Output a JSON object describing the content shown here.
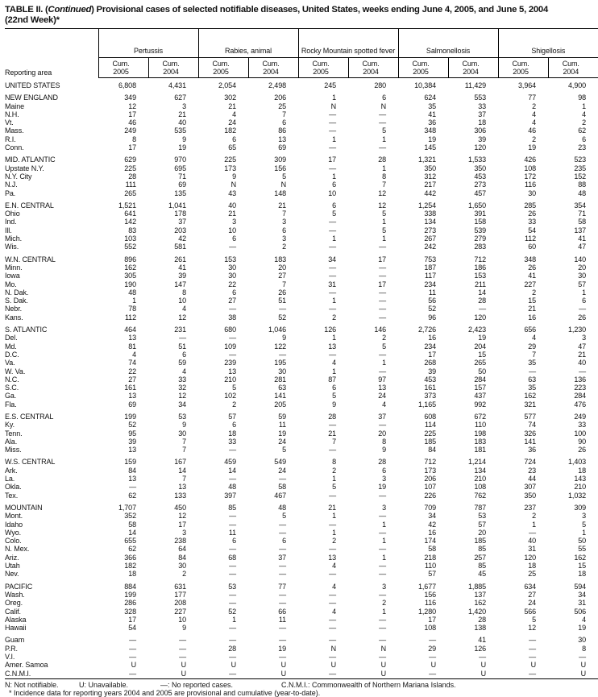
{
  "title": {
    "prefix": "TABLE II. (",
    "italic": "Continued",
    "text": ") Provisional cases of selected notifiable diseases, United States, weeks ending June 4, 2005, and June 5, 2004",
    "line2": "(22nd Week)*"
  },
  "header": {
    "area_label": "Reporting area",
    "groups": [
      "Pertussis",
      "Rabies, animal",
      "Rocky Mountain spotted fever",
      "Salmonellosis",
      "Shigellosis"
    ],
    "subcolumns": [
      [
        "Cum.",
        "2005"
      ],
      [
        "Cum.",
        "2004"
      ]
    ]
  },
  "rows": [
    {
      "area": "UNITED STATES",
      "v": [
        "6,808",
        "4,431",
        "2,054",
        "2,498",
        "245",
        "280",
        "10,384",
        "11,429",
        "3,964",
        "4,900"
      ],
      "type": "us"
    },
    {
      "area": "NEW ENGLAND",
      "v": [
        "349",
        "627",
        "302",
        "206",
        "1",
        "6",
        "624",
        "553",
        "77",
        "98"
      ],
      "type": "gs"
    },
    {
      "area": "Maine",
      "v": [
        "12",
        "3",
        "21",
        "25",
        "N",
        "N",
        "35",
        "33",
        "2",
        "1"
      ]
    },
    {
      "area": "N.H.",
      "v": [
        "17",
        "21",
        "4",
        "7",
        "—",
        "—",
        "41",
        "37",
        "4",
        "4"
      ]
    },
    {
      "area": "Vt.",
      "v": [
        "46",
        "40",
        "24",
        "6",
        "—",
        "—",
        "36",
        "18",
        "4",
        "2"
      ]
    },
    {
      "area": "Mass.",
      "v": [
        "249",
        "535",
        "182",
        "86",
        "—",
        "5",
        "348",
        "306",
        "46",
        "62"
      ]
    },
    {
      "area": "R.I.",
      "v": [
        "8",
        "9",
        "6",
        "13",
        "1",
        "1",
        "19",
        "39",
        "2",
        "6"
      ]
    },
    {
      "area": "Conn.",
      "v": [
        "17",
        "19",
        "65",
        "69",
        "—",
        "—",
        "145",
        "120",
        "19",
        "23"
      ]
    },
    {
      "area": "MID. ATLANTIC",
      "v": [
        "629",
        "970",
        "225",
        "309",
        "17",
        "28",
        "1,321",
        "1,533",
        "426",
        "523"
      ],
      "type": "gs"
    },
    {
      "area": "Upstate N.Y.",
      "v": [
        "225",
        "695",
        "173",
        "156",
        "—",
        "1",
        "350",
        "350",
        "108",
        "235"
      ]
    },
    {
      "area": "N.Y. City",
      "v": [
        "28",
        "71",
        "9",
        "5",
        "1",
        "8",
        "312",
        "453",
        "172",
        "152"
      ]
    },
    {
      "area": "N.J.",
      "v": [
        "111",
        "69",
        "N",
        "N",
        "6",
        "7",
        "217",
        "273",
        "116",
        "88"
      ]
    },
    {
      "area": "Pa.",
      "v": [
        "265",
        "135",
        "43",
        "148",
        "10",
        "12",
        "442",
        "457",
        "30",
        "48"
      ]
    },
    {
      "area": "E.N. CENTRAL",
      "v": [
        "1,521",
        "1,041",
        "40",
        "21",
        "6",
        "12",
        "1,254",
        "1,650",
        "285",
        "354"
      ],
      "type": "gs"
    },
    {
      "area": "Ohio",
      "v": [
        "641",
        "178",
        "21",
        "7",
        "5",
        "5",
        "338",
        "391",
        "26",
        "71"
      ]
    },
    {
      "area": "Ind.",
      "v": [
        "142",
        "37",
        "3",
        "3",
        "—",
        "1",
        "134",
        "158",
        "33",
        "58"
      ]
    },
    {
      "area": "Ill.",
      "v": [
        "83",
        "203",
        "10",
        "6",
        "—",
        "5",
        "273",
        "539",
        "54",
        "137"
      ]
    },
    {
      "area": "Mich.",
      "v": [
        "103",
        "42",
        "6",
        "3",
        "1",
        "1",
        "267",
        "279",
        "112",
        "41"
      ]
    },
    {
      "area": "Wis.",
      "v": [
        "552",
        "581",
        "—",
        "2",
        "—",
        "—",
        "242",
        "283",
        "60",
        "47"
      ]
    },
    {
      "area": "W.N. CENTRAL",
      "v": [
        "896",
        "261",
        "153",
        "183",
        "34",
        "17",
        "753",
        "712",
        "348",
        "140"
      ],
      "type": "gs"
    },
    {
      "area": "Minn.",
      "v": [
        "162",
        "41",
        "30",
        "20",
        "—",
        "—",
        "187",
        "186",
        "26",
        "20"
      ]
    },
    {
      "area": "Iowa",
      "v": [
        "305",
        "39",
        "30",
        "27",
        "—",
        "—",
        "117",
        "153",
        "41",
        "30"
      ]
    },
    {
      "area": "Mo.",
      "v": [
        "190",
        "147",
        "22",
        "7",
        "31",
        "17",
        "234",
        "211",
        "227",
        "57"
      ]
    },
    {
      "area": "N. Dak.",
      "v": [
        "48",
        "8",
        "6",
        "26",
        "—",
        "—",
        "11",
        "14",
        "2",
        "1"
      ]
    },
    {
      "area": "S. Dak.",
      "v": [
        "1",
        "10",
        "27",
        "51",
        "1",
        "—",
        "56",
        "28",
        "15",
        "6"
      ]
    },
    {
      "area": "Nebr.",
      "v": [
        "78",
        "4",
        "—",
        "—",
        "—",
        "—",
        "52",
        "—",
        "21",
        "—"
      ]
    },
    {
      "area": "Kans.",
      "v": [
        "112",
        "12",
        "38",
        "52",
        "2",
        "—",
        "96",
        "120",
        "16",
        "26"
      ]
    },
    {
      "area": "S. ATLANTIC",
      "v": [
        "464",
        "231",
        "680",
        "1,046",
        "126",
        "146",
        "2,726",
        "2,423",
        "656",
        "1,230"
      ],
      "type": "gs"
    },
    {
      "area": "Del.",
      "v": [
        "13",
        "—",
        "—",
        "9",
        "1",
        "2",
        "16",
        "19",
        "4",
        "3"
      ]
    },
    {
      "area": "Md.",
      "v": [
        "81",
        "51",
        "109",
        "122",
        "13",
        "5",
        "234",
        "204",
        "29",
        "47"
      ]
    },
    {
      "area": "D.C.",
      "v": [
        "4",
        "6",
        "—",
        "—",
        "—",
        "—",
        "17",
        "15",
        "7",
        "21"
      ]
    },
    {
      "area": "Va.",
      "v": [
        "74",
        "59",
        "239",
        "195",
        "4",
        "1",
        "268",
        "265",
        "35",
        "40"
      ]
    },
    {
      "area": "W. Va.",
      "v": [
        "22",
        "4",
        "13",
        "30",
        "1",
        "—",
        "39",
        "50",
        "—",
        "—"
      ]
    },
    {
      "area": "N.C.",
      "v": [
        "27",
        "33",
        "210",
        "281",
        "87",
        "97",
        "453",
        "284",
        "63",
        "136"
      ]
    },
    {
      "area": "S.C.",
      "v": [
        "161",
        "32",
        "5",
        "63",
        "6",
        "13",
        "161",
        "157",
        "35",
        "223"
      ]
    },
    {
      "area": "Ga.",
      "v": [
        "13",
        "12",
        "102",
        "141",
        "5",
        "24",
        "373",
        "437",
        "162",
        "284"
      ]
    },
    {
      "area": "Fla.",
      "v": [
        "69",
        "34",
        "2",
        "205",
        "9",
        "4",
        "1,165",
        "992",
        "321",
        "476"
      ]
    },
    {
      "area": "E.S. CENTRAL",
      "v": [
        "199",
        "53",
        "57",
        "59",
        "28",
        "37",
        "608",
        "672",
        "577",
        "249"
      ],
      "type": "gs"
    },
    {
      "area": "Ky.",
      "v": [
        "52",
        "9",
        "6",
        "11",
        "—",
        "—",
        "114",
        "110",
        "74",
        "33"
      ]
    },
    {
      "area": "Tenn.",
      "v": [
        "95",
        "30",
        "18",
        "19",
        "21",
        "20",
        "225",
        "198",
        "326",
        "100"
      ]
    },
    {
      "area": "Ala.",
      "v": [
        "39",
        "7",
        "33",
        "24",
        "7",
        "8",
        "185",
        "183",
        "141",
        "90"
      ]
    },
    {
      "area": "Miss.",
      "v": [
        "13",
        "7",
        "—",
        "5",
        "—",
        "9",
        "84",
        "181",
        "36",
        "26"
      ]
    },
    {
      "area": "W.S. CENTRAL",
      "v": [
        "159",
        "167",
        "459",
        "549",
        "8",
        "28",
        "712",
        "1,214",
        "724",
        "1,403"
      ],
      "type": "gs"
    },
    {
      "area": "Ark.",
      "v": [
        "84",
        "14",
        "14",
        "24",
        "2",
        "6",
        "173",
        "134",
        "23",
        "18"
      ]
    },
    {
      "area": "La.",
      "v": [
        "13",
        "7",
        "—",
        "—",
        "1",
        "3",
        "206",
        "210",
        "44",
        "143"
      ]
    },
    {
      "area": "Okla.",
      "v": [
        "—",
        "13",
        "48",
        "58",
        "5",
        "19",
        "107",
        "108",
        "307",
        "210"
      ]
    },
    {
      "area": "Tex.",
      "v": [
        "62",
        "133",
        "397",
        "467",
        "—",
        "—",
        "226",
        "762",
        "350",
        "1,032"
      ]
    },
    {
      "area": "MOUNTAIN",
      "v": [
        "1,707",
        "450",
        "85",
        "48",
        "21",
        "3",
        "709",
        "787",
        "237",
        "309"
      ],
      "type": "gs"
    },
    {
      "area": "Mont.",
      "v": [
        "352",
        "12",
        "—",
        "5",
        "1",
        "—",
        "34",
        "53",
        "2",
        "3"
      ]
    },
    {
      "area": "Idaho",
      "v": [
        "58",
        "17",
        "—",
        "—",
        "—",
        "1",
        "42",
        "57",
        "1",
        "5"
      ]
    },
    {
      "area": "Wyo.",
      "v": [
        "14",
        "3",
        "11",
        "—",
        "1",
        "—",
        "16",
        "20",
        "—",
        "1"
      ]
    },
    {
      "area": "Colo.",
      "v": [
        "655",
        "238",
        "6",
        "6",
        "2",
        "1",
        "174",
        "185",
        "40",
        "50"
      ]
    },
    {
      "area": "N. Mex.",
      "v": [
        "62",
        "64",
        "—",
        "—",
        "—",
        "—",
        "58",
        "85",
        "31",
        "55"
      ]
    },
    {
      "area": "Ariz.",
      "v": [
        "366",
        "84",
        "68",
        "37",
        "13",
        "1",
        "218",
        "257",
        "120",
        "162"
      ]
    },
    {
      "area": "Utah",
      "v": [
        "182",
        "30",
        "—",
        "—",
        "4",
        "—",
        "110",
        "85",
        "18",
        "15"
      ]
    },
    {
      "area": "Nev.",
      "v": [
        "18",
        "2",
        "—",
        "—",
        "—",
        "—",
        "57",
        "45",
        "25",
        "18"
      ]
    },
    {
      "area": "PACIFIC",
      "v": [
        "884",
        "631",
        "53",
        "77",
        "4",
        "3",
        "1,677",
        "1,885",
        "634",
        "594"
      ],
      "type": "gs"
    },
    {
      "area": "Wash.",
      "v": [
        "199",
        "177",
        "—",
        "—",
        "—",
        "—",
        "156",
        "137",
        "27",
        "34"
      ]
    },
    {
      "area": "Oreg.",
      "v": [
        "286",
        "208",
        "—",
        "—",
        "—",
        "2",
        "116",
        "162",
        "24",
        "31"
      ]
    },
    {
      "area": "Calif.",
      "v": [
        "328",
        "227",
        "52",
        "66",
        "4",
        "1",
        "1,280",
        "1,420",
        "566",
        "506"
      ]
    },
    {
      "area": "Alaska",
      "v": [
        "17",
        "10",
        "1",
        "11",
        "—",
        "—",
        "17",
        "28",
        "5",
        "4"
      ]
    },
    {
      "area": "Hawaii",
      "v": [
        "54",
        "9",
        "—",
        "—",
        "—",
        "—",
        "108",
        "138",
        "12",
        "19"
      ]
    },
    {
      "area": "Guam",
      "v": [
        "—",
        "—",
        "—",
        "—",
        "—",
        "—",
        "—",
        "41",
        "—",
        "30"
      ],
      "type": "gs"
    },
    {
      "area": "P.R.",
      "v": [
        "—",
        "—",
        "28",
        "19",
        "N",
        "N",
        "29",
        "126",
        "—",
        "8"
      ]
    },
    {
      "area": "V.I.",
      "v": [
        "—",
        "—",
        "—",
        "—",
        "—",
        "—",
        "—",
        "—",
        "—",
        "—"
      ]
    },
    {
      "area": "Amer. Samoa",
      "v": [
        "U",
        "U",
        "U",
        "U",
        "U",
        "U",
        "U",
        "U",
        "U",
        "U"
      ]
    },
    {
      "area": "C.N.M.I.",
      "v": [
        "—",
        "U",
        "—",
        "U",
        "—",
        "U",
        "—",
        "U",
        "—",
        "U"
      ],
      "type": "end"
    }
  ],
  "footnotes": {
    "legend": [
      "N: Not notifiable.",
      "U: Unavailable.",
      "—: No reported cases.",
      "C.N.M.I.: Commonwealth of Northern Mariana Islands."
    ],
    "note": "* Incidence data for reporting years 2004 and 2005 are provisional and cumulative (year-to-date)."
  }
}
